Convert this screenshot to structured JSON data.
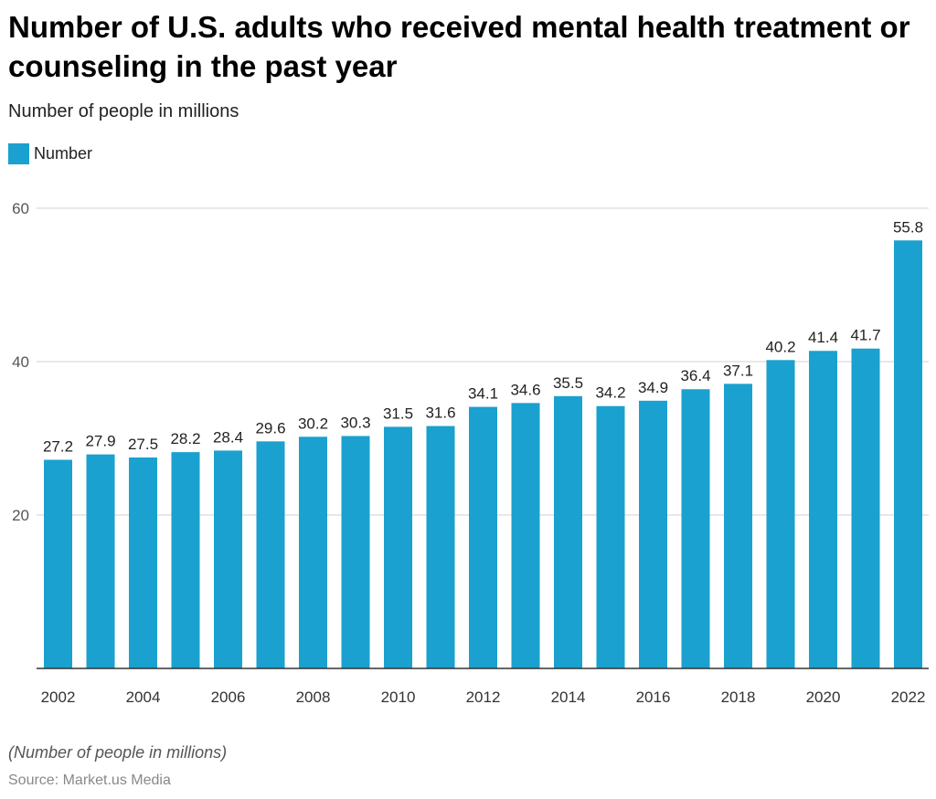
{
  "chart_data": {
    "type": "bar",
    "title": "Number of U.S. adults who received mental health treatment or counseling in the past year",
    "subtitle": "Number of people in millions",
    "legend": {
      "entries": [
        "Number"
      ],
      "placement": "top-left"
    },
    "categories": [
      "2002",
      "2003",
      "2004",
      "2005",
      "2006",
      "2007",
      "2008",
      "2009",
      "2010",
      "2011",
      "2012",
      "2013",
      "2014",
      "2015",
      "2016",
      "2017",
      "2018",
      "2019",
      "2020",
      "2021",
      "2022"
    ],
    "x_tick_labels": [
      "2002",
      "2004",
      "2006",
      "2008",
      "2010",
      "2012",
      "2014",
      "2016",
      "2018",
      "2020",
      "2022"
    ],
    "series": [
      {
        "name": "Number",
        "values": [
          27.2,
          27.9,
          27.5,
          28.2,
          28.4,
          29.6,
          30.2,
          30.3,
          31.5,
          31.6,
          34.1,
          34.6,
          35.5,
          34.2,
          34.9,
          36.4,
          37.1,
          40.2,
          41.4,
          41.7,
          55.8
        ],
        "color": "#1aa1cf"
      }
    ],
    "ylim": [
      0,
      60
    ],
    "y_ticks": [
      20,
      40,
      60
    ],
    "grid": true,
    "xlabel": "",
    "ylabel": ""
  },
  "footer": {
    "note": "(Number of people in millions)",
    "source": "Source: Market.us Media"
  }
}
